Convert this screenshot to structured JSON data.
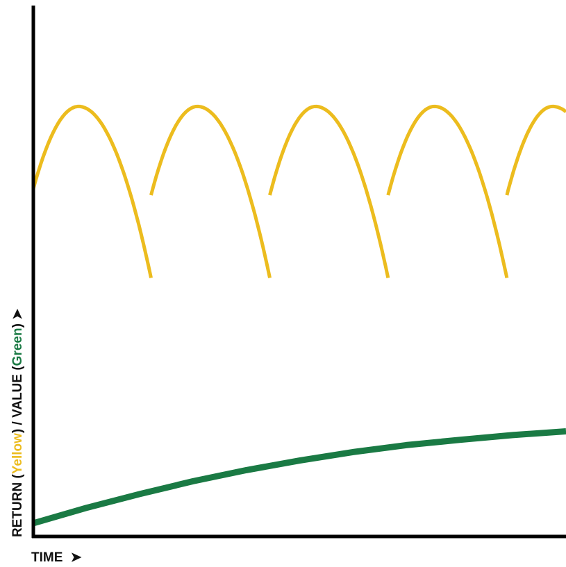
{
  "chart_data": {
    "type": "line",
    "title": "",
    "xlabel": {
      "text": "TIME",
      "arrow": "➤"
    },
    "ylabel": {
      "parts": [
        {
          "text": "RETURN (",
          "color": "#111111"
        },
        {
          "text": "Yellow",
          "color": "#ecbc1e"
        },
        {
          "text": ") / VALUE (",
          "color": "#111111"
        },
        {
          "text": "Green",
          "color": "#1a7a44"
        },
        {
          "text": ") ",
          "color": "#111111"
        },
        {
          "text": "➤",
          "color": "#111111"
        }
      ]
    },
    "xlim": [
      0,
      100
    ],
    "ylim": [
      0,
      100
    ],
    "ticks": false,
    "grid": false,
    "series": [
      {
        "name": "Yellow",
        "color": "#ecbc1e",
        "kind": "repeating-arch",
        "segments": [
          {
            "x": [
              0.0,
              8.5,
              22.1
            ],
            "y": [
              65.5,
              81.0,
              48.7
            ]
          },
          {
            "x": [
              22.1,
              30.8,
              44.4
            ],
            "y": [
              64.3,
              81.0,
              48.7
            ]
          },
          {
            "x": [
              44.4,
              53.0,
              66.6
            ],
            "y": [
              64.3,
              81.0,
              48.7
            ]
          },
          {
            "x": [
              66.6,
              75.3,
              88.9
            ],
            "y": [
              64.3,
              81.0,
              48.7
            ]
          },
          {
            "x": [
              88.9,
              97.5,
              100.0
            ],
            "y": [
              64.3,
              81.0,
              80.0
            ]
          }
        ]
      },
      {
        "name": "Green",
        "color": "#1a7a44",
        "kind": "curve",
        "x": [
          0,
          10,
          20,
          30,
          40,
          50,
          60,
          70,
          80,
          90,
          100
        ],
        "y": [
          2.5,
          5.4,
          8.0,
          10.4,
          12.5,
          14.3,
          15.9,
          17.2,
          18.2,
          19.1,
          19.8
        ]
      }
    ]
  }
}
